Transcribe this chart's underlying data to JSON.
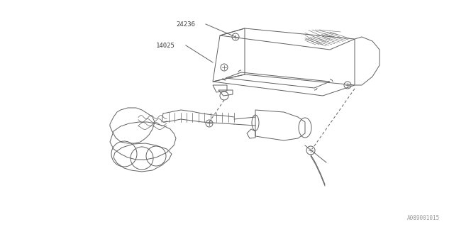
{
  "background_color": "#ffffff",
  "line_color": "#606060",
  "text_color": "#404040",
  "watermark": "A089001015",
  "fig_width": 6.4,
  "fig_height": 3.2,
  "dpi": 100
}
